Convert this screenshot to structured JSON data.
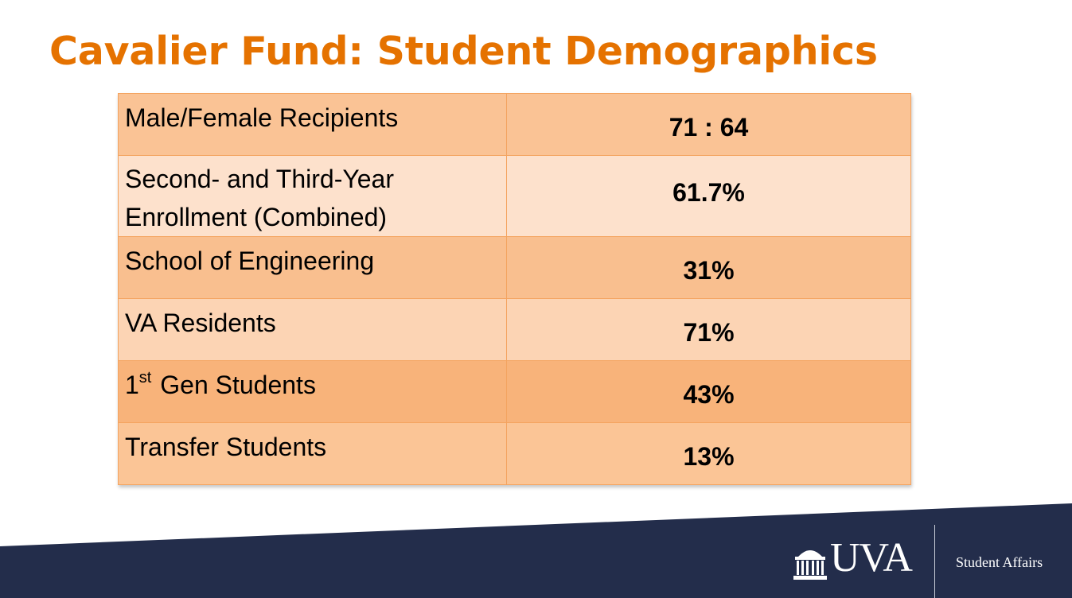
{
  "slide": {
    "title": "Cavalier Fund: Student Demographics"
  },
  "table": {
    "rows": [
      {
        "label": "Male/Female Recipients",
        "value": "71 : 64"
      },
      {
        "label_line1": "Second- and Third-Year",
        "label_line2": "Enrollment (Combined)",
        "value": "61.7%"
      },
      {
        "label": "School of Engineering",
        "value": "31%"
      },
      {
        "label": "VA Residents",
        "value": "71%"
      },
      {
        "label_prefix": "1",
        "label_superscript": "st",
        "label_suffix": " Gen Students",
        "value": "43%"
      },
      {
        "label": "Transfer Students",
        "value": "13%"
      }
    ]
  },
  "footer": {
    "logo_text": "UVA",
    "logo_icon": "rotunda-icon",
    "unit_name": "Student Affairs"
  },
  "colors": {
    "title": "#e57200",
    "footer_band": "#232d4b",
    "row_dark": "#f8b37a",
    "row_light": "#fde1cc"
  }
}
